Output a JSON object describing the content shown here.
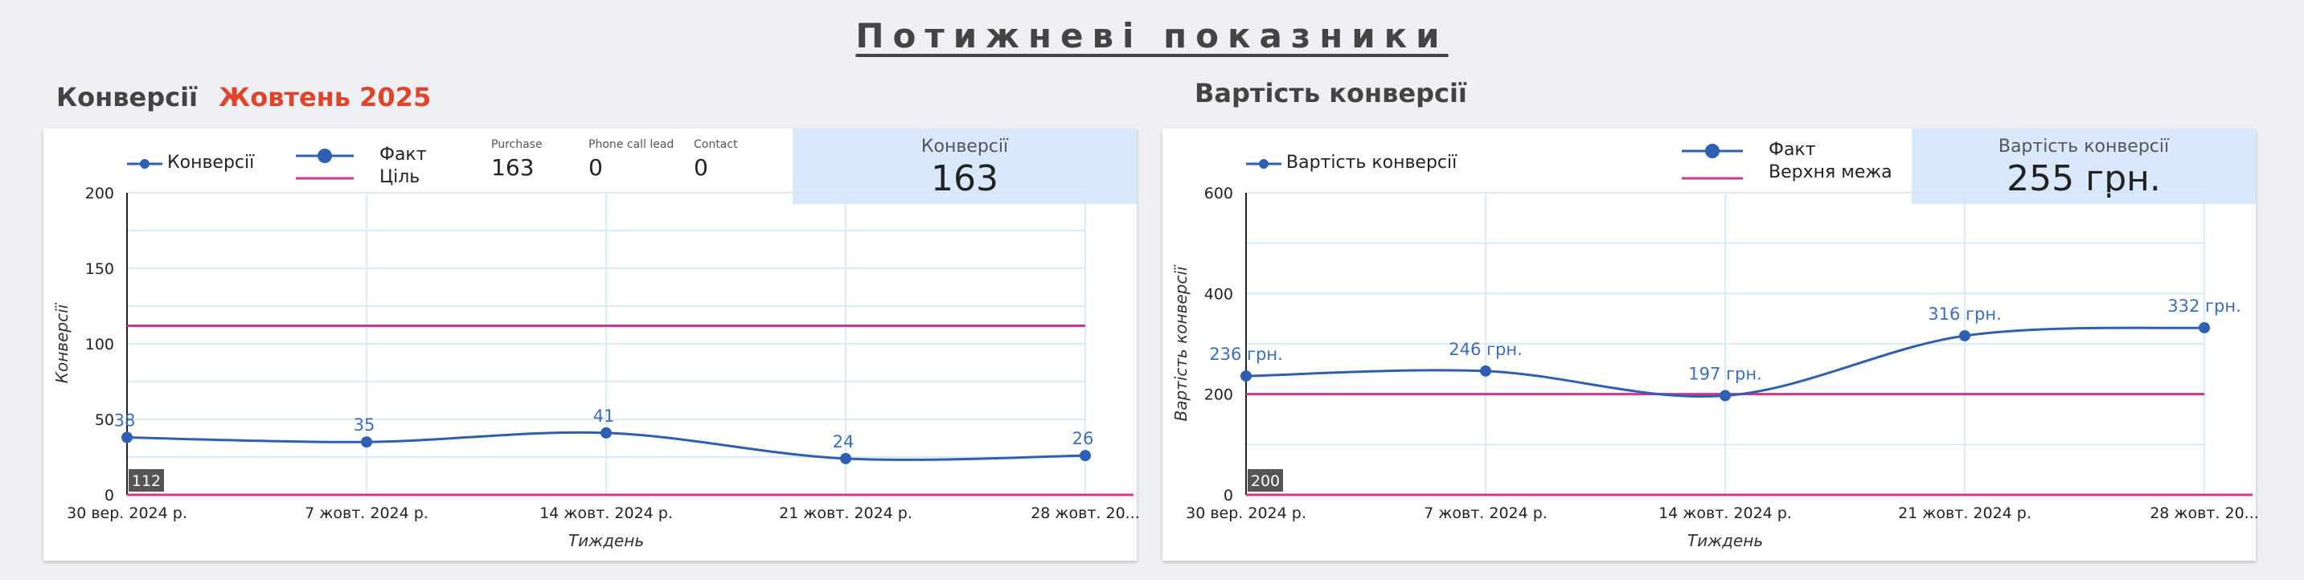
{
  "page": {
    "title": "Потижневі показники",
    "left_section_title": "Конверсії",
    "left_section_period": "Жовтень 2025",
    "right_section_title": "Вартість конверсії"
  },
  "left_card": {
    "legend_series": "Конверсії",
    "legend_fact": "Факт",
    "legend_target": "Ціль",
    "metrics": [
      {
        "label": "Purchase",
        "value": "163"
      },
      {
        "label": "Phone call lead",
        "value": "0"
      },
      {
        "label": "Contact",
        "value": "0"
      }
    ],
    "kpi_label": "Конверсії",
    "kpi_value": "163",
    "badge": "112"
  },
  "right_card": {
    "legend_series": "Вартість конверсії",
    "legend_fact": "Факт",
    "legend_limit": "Верхня межа",
    "kpi_label": "Вартість конверсії",
    "kpi_value": "255 грн.",
    "badge": "200"
  },
  "chart_data": [
    {
      "type": "line",
      "x": [
        "30 вер. 2024 р.",
        "7 жовт. 2024 р.",
        "14 жовт. 2024 р.",
        "21 жовт. 2024 р.",
        "28 жовт. 20..."
      ],
      "series": [
        {
          "name": "Конверсії",
          "values": [
            38,
            35,
            41,
            24,
            26
          ],
          "labels": [
            "38",
            "35",
            "41",
            "24",
            "26"
          ],
          "color": "#2f5fb3"
        }
      ],
      "reference_line": {
        "name": "Ціль",
        "value": 112,
        "color": "#d6338a"
      },
      "baseline_color": "#d6338a",
      "xlabel": "Тиждень",
      "ylabel": "Конверсії",
      "ylim": [
        0,
        200
      ],
      "yticks": [
        0,
        50,
        100,
        150,
        200
      ],
      "grid": true,
      "grid_color": "#cfe6f5"
    },
    {
      "type": "line",
      "x": [
        "30 вер. 2024 р.",
        "7 жовт. 2024 р.",
        "14 жовт. 2024 р.",
        "21 жовт. 2024 р.",
        "28 жовт. 20..."
      ],
      "series": [
        {
          "name": "Вартість конверсії",
          "values": [
            236,
            246,
            197,
            316,
            332
          ],
          "labels": [
            "236 грн.",
            "246 грн.",
            "197 грн.",
            "316 грн.",
            "332 грн."
          ],
          "color": "#2f5fb3"
        }
      ],
      "reference_line": {
        "name": "Верхня межа",
        "value": 200,
        "color": "#d6338a"
      },
      "baseline_color": "#d6338a",
      "xlabel": "Тиждень",
      "ylabel": "Вартість конверсії",
      "ylim": [
        0,
        600
      ],
      "yticks": [
        0,
        200,
        400,
        600
      ],
      "grid": true,
      "grid_color": "#cfe6f5"
    }
  ]
}
